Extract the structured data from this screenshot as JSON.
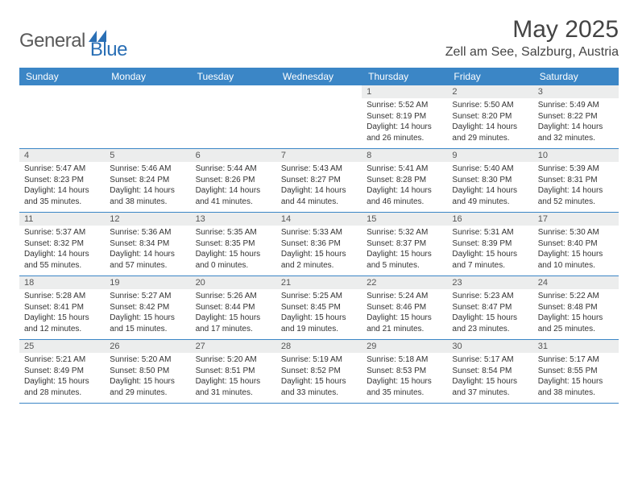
{
  "logo": {
    "part1": "General",
    "part2": "Blue"
  },
  "title": "May 2025",
  "location": "Zell am See, Salzburg, Austria",
  "colors": {
    "header_bg": "#3b86c6",
    "header_fg": "#ffffff",
    "daynum_bg": "#eceded",
    "border": "#3b86c6",
    "logo_gray": "#5a5a5a",
    "logo_blue": "#2a6fb5"
  },
  "dayNames": [
    "Sunday",
    "Monday",
    "Tuesday",
    "Wednesday",
    "Thursday",
    "Friday",
    "Saturday"
  ],
  "weeks": [
    [
      null,
      null,
      null,
      null,
      {
        "n": "1",
        "sr": "5:52 AM",
        "ss": "8:19 PM",
        "dl": "14 hours and 26 minutes."
      },
      {
        "n": "2",
        "sr": "5:50 AM",
        "ss": "8:20 PM",
        "dl": "14 hours and 29 minutes."
      },
      {
        "n": "3",
        "sr": "5:49 AM",
        "ss": "8:22 PM",
        "dl": "14 hours and 32 minutes."
      }
    ],
    [
      {
        "n": "4",
        "sr": "5:47 AM",
        "ss": "8:23 PM",
        "dl": "14 hours and 35 minutes."
      },
      {
        "n": "5",
        "sr": "5:46 AM",
        "ss": "8:24 PM",
        "dl": "14 hours and 38 minutes."
      },
      {
        "n": "6",
        "sr": "5:44 AM",
        "ss": "8:26 PM",
        "dl": "14 hours and 41 minutes."
      },
      {
        "n": "7",
        "sr": "5:43 AM",
        "ss": "8:27 PM",
        "dl": "14 hours and 44 minutes."
      },
      {
        "n": "8",
        "sr": "5:41 AM",
        "ss": "8:28 PM",
        "dl": "14 hours and 46 minutes."
      },
      {
        "n": "9",
        "sr": "5:40 AM",
        "ss": "8:30 PM",
        "dl": "14 hours and 49 minutes."
      },
      {
        "n": "10",
        "sr": "5:39 AM",
        "ss": "8:31 PM",
        "dl": "14 hours and 52 minutes."
      }
    ],
    [
      {
        "n": "11",
        "sr": "5:37 AM",
        "ss": "8:32 PM",
        "dl": "14 hours and 55 minutes."
      },
      {
        "n": "12",
        "sr": "5:36 AM",
        "ss": "8:34 PM",
        "dl": "14 hours and 57 minutes."
      },
      {
        "n": "13",
        "sr": "5:35 AM",
        "ss": "8:35 PM",
        "dl": "15 hours and 0 minutes."
      },
      {
        "n": "14",
        "sr": "5:33 AM",
        "ss": "8:36 PM",
        "dl": "15 hours and 2 minutes."
      },
      {
        "n": "15",
        "sr": "5:32 AM",
        "ss": "8:37 PM",
        "dl": "15 hours and 5 minutes."
      },
      {
        "n": "16",
        "sr": "5:31 AM",
        "ss": "8:39 PM",
        "dl": "15 hours and 7 minutes."
      },
      {
        "n": "17",
        "sr": "5:30 AM",
        "ss": "8:40 PM",
        "dl": "15 hours and 10 minutes."
      }
    ],
    [
      {
        "n": "18",
        "sr": "5:28 AM",
        "ss": "8:41 PM",
        "dl": "15 hours and 12 minutes."
      },
      {
        "n": "19",
        "sr": "5:27 AM",
        "ss": "8:42 PM",
        "dl": "15 hours and 15 minutes."
      },
      {
        "n": "20",
        "sr": "5:26 AM",
        "ss": "8:44 PM",
        "dl": "15 hours and 17 minutes."
      },
      {
        "n": "21",
        "sr": "5:25 AM",
        "ss": "8:45 PM",
        "dl": "15 hours and 19 minutes."
      },
      {
        "n": "22",
        "sr": "5:24 AM",
        "ss": "8:46 PM",
        "dl": "15 hours and 21 minutes."
      },
      {
        "n": "23",
        "sr": "5:23 AM",
        "ss": "8:47 PM",
        "dl": "15 hours and 23 minutes."
      },
      {
        "n": "24",
        "sr": "5:22 AM",
        "ss": "8:48 PM",
        "dl": "15 hours and 25 minutes."
      }
    ],
    [
      {
        "n": "25",
        "sr": "5:21 AM",
        "ss": "8:49 PM",
        "dl": "15 hours and 28 minutes."
      },
      {
        "n": "26",
        "sr": "5:20 AM",
        "ss": "8:50 PM",
        "dl": "15 hours and 29 minutes."
      },
      {
        "n": "27",
        "sr": "5:20 AM",
        "ss": "8:51 PM",
        "dl": "15 hours and 31 minutes."
      },
      {
        "n": "28",
        "sr": "5:19 AM",
        "ss": "8:52 PM",
        "dl": "15 hours and 33 minutes."
      },
      {
        "n": "29",
        "sr": "5:18 AM",
        "ss": "8:53 PM",
        "dl": "15 hours and 35 minutes."
      },
      {
        "n": "30",
        "sr": "5:17 AM",
        "ss": "8:54 PM",
        "dl": "15 hours and 37 minutes."
      },
      {
        "n": "31",
        "sr": "5:17 AM",
        "ss": "8:55 PM",
        "dl": "15 hours and 38 minutes."
      }
    ]
  ],
  "labels": {
    "sunrise": "Sunrise: ",
    "sunset": "Sunset: ",
    "daylight": "Daylight: "
  }
}
